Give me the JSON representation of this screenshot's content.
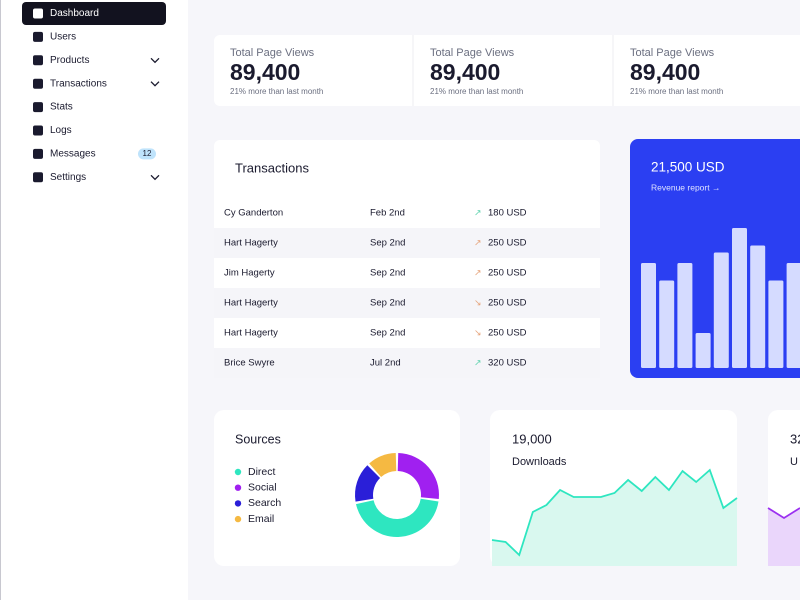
{
  "sidebar": {
    "items": [
      {
        "label": "Dashboard",
        "active": true
      },
      {
        "label": "Users"
      },
      {
        "label": "Products",
        "expandable": true
      },
      {
        "label": "Transactions",
        "expandable": true
      },
      {
        "label": "Stats"
      },
      {
        "label": "Logs"
      },
      {
        "label": "Messages",
        "badge": "12"
      },
      {
        "label": "Settings",
        "expandable": true
      }
    ]
  },
  "stats": [
    {
      "title": "Total Page Views",
      "value": "89,400",
      "desc": "21% more than last month"
    },
    {
      "title": "Total Page Views",
      "value": "89,400",
      "desc": "21% more than last month"
    },
    {
      "title": "Total Page Views",
      "value": "89,400",
      "desc": "21% more than last month"
    }
  ],
  "transactions": {
    "title": "Transactions",
    "rows": [
      {
        "name": "Cy Ganderton",
        "date": "Feb 2nd",
        "trend": "↗",
        "amount": "180 USD"
      },
      {
        "name": "Hart Hagerty",
        "date": "Sep 2nd",
        "trend": "↗",
        "amount": "250 USD"
      },
      {
        "name": "Jim Hagerty",
        "date": "Sep 2nd",
        "trend": "↗",
        "amount": "250 USD"
      },
      {
        "name": "Hart Hagerty",
        "date": "Sep 2nd",
        "trend": "↘",
        "amount": "250 USD"
      },
      {
        "name": "Hart Hagerty",
        "date": "Sep 2nd",
        "trend": "↘",
        "amount": "250 USD"
      },
      {
        "name": "Brice Swyre",
        "date": "Jul 2nd",
        "trend": "↗",
        "amount": "320 USD"
      }
    ]
  },
  "revenue": {
    "title": "21,500 USD",
    "link": "Revenue report →",
    "color": "#2b3ff2",
    "bar_color": "#d5dbff",
    "values": [
      30,
      25,
      30,
      10,
      33,
      40,
      35,
      25,
      30
    ]
  },
  "sources": {
    "title": "Sources",
    "series": [
      {
        "name": "Social",
        "color": "#a020f0",
        "value": 27
      },
      {
        "name": "Direct",
        "color": "#2ee6c0",
        "value": 45
      },
      {
        "name": "Search",
        "color": "#2a1fd8",
        "value": 16
      },
      {
        "name": "Email",
        "color": "#f5b942",
        "value": 12
      }
    ],
    "legend_order": [
      1,
      0,
      2,
      3
    ]
  },
  "downloads": {
    "value": "19,000",
    "label": "Downloads",
    "color": "#2ee6c0",
    "fill": "#d9f8ef",
    "values": [
      26,
      24,
      11,
      54,
      61,
      76,
      69,
      69,
      69,
      73,
      86,
      75,
      89,
      76,
      95,
      84,
      96,
      58,
      68
    ]
  },
  "users": {
    "value": "32",
    "label": "U",
    "color": "#9b30f0",
    "fill": "#ead6fb",
    "values": [
      58,
      48,
      58
    ]
  }
}
